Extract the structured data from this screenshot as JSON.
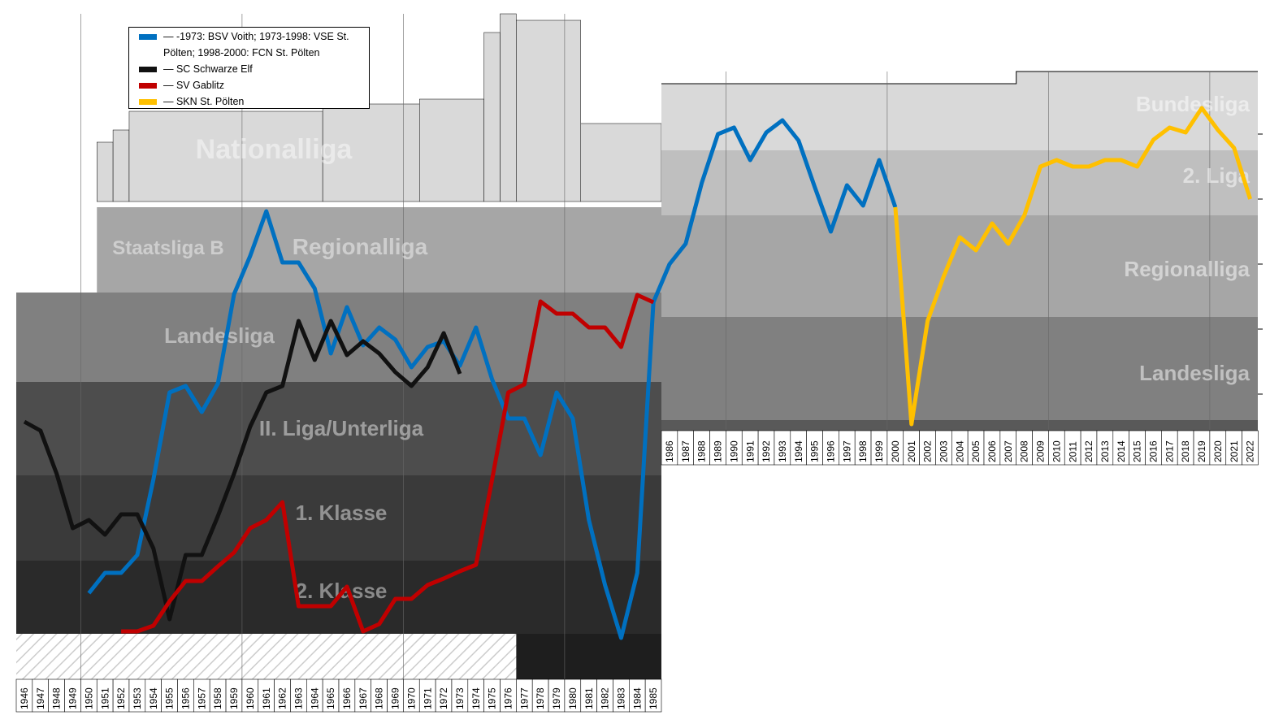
{
  "chart_data": {
    "type": "line",
    "title": "",
    "xlabel": "",
    "ylabel": "",
    "ylim": [
      0,
      880
    ],
    "y_note": "overall league position (lower = higher league)",
    "league_labels_left": [
      "Nationalliga",
      "Staatsliga B",
      "Regionalliga",
      "Landesliga",
      "II. Liga/Unterliga",
      "1. Klasse",
      "2. Klasse"
    ],
    "league_labels_right": [
      "Bundesliga",
      "2. Liga",
      "Regionalliga",
      "Landesliga"
    ],
    "x_left": [
      1946,
      1947,
      1948,
      1949,
      1950,
      1951,
      1952,
      1953,
      1954,
      1955,
      1956,
      1957,
      1958,
      1959,
      1960,
      1961,
      1962,
      1963,
      1964,
      1965,
      1966,
      1967,
      1968,
      1969,
      1970,
      1971,
      1972,
      1973,
      1974,
      1975,
      1976,
      1977,
      1978,
      1979,
      1980,
      1981,
      1982,
      1983,
      1984,
      1985
    ],
    "x_right": [
      1986,
      1987,
      1988,
      1989,
      1990,
      1991,
      1992,
      1993,
      1994,
      1995,
      1996,
      1997,
      1998,
      1999,
      2000,
      2001,
      2002,
      2003,
      2004,
      2005,
      2006,
      2007,
      2008,
      2009,
      2010,
      2011,
      2012,
      2013,
      2014,
      2015,
      2016,
      2017,
      2018,
      2019,
      2020,
      2021,
      2022
    ],
    "series": [
      {
        "name": "— -1973: BSV Voith; 1973-1998: VSE St. Pölten; 1998-2000: FCN St. Pölten",
        "color": "#0070c0",
        "years": [
          1950,
          2000
        ],
        "values": [
          730,
          705,
          705,
          683,
          590,
          483,
          475,
          507,
          472,
          362,
          315,
          260,
          323,
          323,
          355,
          435,
          378,
          425,
          403,
          418,
          452,
          427,
          420,
          450,
          403,
          467,
          515,
          515,
          560,
          483,
          515,
          640,
          720,
          785,
          705,
          372,
          325,
          300,
          225,
          165,
          157,
          197,
          163,
          148,
          173,
          230,
          285,
          228,
          253,
          197,
          255
        ]
      },
      {
        "name": "— SC Schwarze Elf",
        "color": "#111111",
        "years": [
          1946,
          1973
        ],
        "values": [
          519,
          530,
          583,
          650,
          640,
          658,
          633,
          633,
          675,
          762,
          683,
          683,
          635,
          583,
          525,
          483,
          475,
          395,
          443,
          395,
          437,
          420,
          435,
          458,
          475,
          452,
          410,
          460
        ]
      },
      {
        "name": "— SV Gablitz",
        "color": "#c00000",
        "years": [
          1952,
          1985
        ],
        "values": [
          777,
          777,
          770,
          740,
          715,
          715,
          697,
          680,
          650,
          640,
          618,
          746,
          746,
          746,
          722,
          777,
          768,
          737,
          737,
          720,
          712,
          703,
          695,
          590,
          483,
          473,
          371,
          386,
          386,
          403,
          403,
          427,
          363,
          372
        ]
      },
      {
        "name": "— SKN St. Pölten",
        "color": "#ffc000",
        "years": [
          2000,
          2022
        ],
        "values": [
          255,
          522,
          395,
          340,
          292,
          308,
          275,
          300,
          265,
          205,
          197,
          205,
          205,
          197,
          197,
          205,
          172,
          157,
          163,
          133,
          160,
          182,
          245
        ]
      }
    ]
  }
}
